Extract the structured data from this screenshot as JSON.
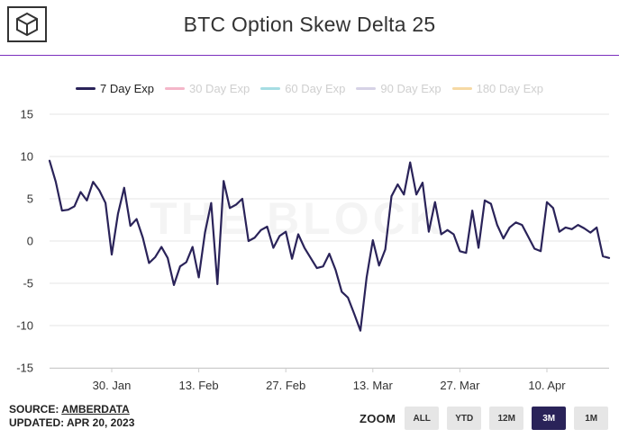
{
  "header": {
    "title": "BTC Option Skew Delta 25",
    "watermark": "THE BLOCK"
  },
  "colors": {
    "accent_rule": "#7b2fbe",
    "series_active": "#2a2359",
    "zoom_active_bg": "#2a2359"
  },
  "icons": {
    "logo": "the-block-cube-logo"
  },
  "footer": {
    "source_prefix": "SOURCE: ",
    "source_name": "AMBERDATA",
    "updated": "UPDATED: APR 20, 2023"
  },
  "zoom": {
    "label": "ZOOM",
    "buttons": [
      "ALL",
      "YTD",
      "12M",
      "3M",
      "1M"
    ],
    "active": "3M"
  },
  "chart_data": {
    "type": "line",
    "title": "BTC Option Skew Delta 25",
    "xlabel": "",
    "ylabel": "",
    "ylim": [
      -15,
      15
    ],
    "yticks": [
      "15",
      "10",
      "5",
      "0",
      "-5",
      "-10",
      "-15"
    ],
    "xticks": [
      "30. Jan",
      "13. Feb",
      "27. Feb",
      "13. Mar",
      "27. Mar",
      "10. Apr"
    ],
    "grid": "horizontal",
    "legend_position": "top",
    "x_range": [
      "2023-01-20",
      "2023-04-20"
    ],
    "series": [
      {
        "name": "7 Day Exp",
        "color": "#2a2359",
        "visible": true,
        "points": [
          [
            "2023-01-20",
            9.5
          ],
          [
            "2023-01-21",
            7.0
          ],
          [
            "2023-01-22",
            3.6
          ],
          [
            "2023-01-23",
            3.7
          ],
          [
            "2023-01-24",
            4.1
          ],
          [
            "2023-01-25",
            5.8
          ],
          [
            "2023-01-26",
            4.8
          ],
          [
            "2023-01-27",
            7.0
          ],
          [
            "2023-01-28",
            6.0
          ],
          [
            "2023-01-29",
            4.5
          ],
          [
            "2023-01-30",
            -1.6
          ],
          [
            "2023-01-31",
            3.2
          ],
          [
            "2023-02-01",
            6.3
          ],
          [
            "2023-02-02",
            1.8
          ],
          [
            "2023-02-03",
            2.6
          ],
          [
            "2023-02-04",
            0.4
          ],
          [
            "2023-02-05",
            -2.6
          ],
          [
            "2023-02-06",
            -1.9
          ],
          [
            "2023-02-07",
            -0.7
          ],
          [
            "2023-02-08",
            -2.0
          ],
          [
            "2023-02-09",
            -5.2
          ],
          [
            "2023-02-10",
            -3.0
          ],
          [
            "2023-02-11",
            -2.5
          ],
          [
            "2023-02-12",
            -0.7
          ],
          [
            "2023-02-13",
            -4.3
          ],
          [
            "2023-02-14",
            1.0
          ],
          [
            "2023-02-15",
            4.5
          ],
          [
            "2023-02-16",
            -5.1
          ],
          [
            "2023-02-17",
            7.1
          ],
          [
            "2023-02-18",
            3.9
          ],
          [
            "2023-02-19",
            4.3
          ],
          [
            "2023-02-20",
            5.0
          ],
          [
            "2023-02-21",
            0.0
          ],
          [
            "2023-02-22",
            0.4
          ],
          [
            "2023-02-23",
            1.3
          ],
          [
            "2023-02-24",
            1.7
          ],
          [
            "2023-02-25",
            -0.8
          ],
          [
            "2023-02-26",
            0.6
          ],
          [
            "2023-02-27",
            1.1
          ],
          [
            "2023-02-28",
            -2.1
          ],
          [
            "2023-03-01",
            0.8
          ],
          [
            "2023-03-02",
            -0.8
          ],
          [
            "2023-03-03",
            -2.0
          ],
          [
            "2023-03-04",
            -3.2
          ],
          [
            "2023-03-05",
            -3.0
          ],
          [
            "2023-03-06",
            -1.5
          ],
          [
            "2023-03-07",
            -3.4
          ],
          [
            "2023-03-08",
            -6.0
          ],
          [
            "2023-03-09",
            -6.7
          ],
          [
            "2023-03-10",
            -8.6
          ],
          [
            "2023-03-11",
            -10.6
          ],
          [
            "2023-03-12",
            -4.3
          ],
          [
            "2023-03-13",
            0.1
          ],
          [
            "2023-03-14",
            -2.9
          ],
          [
            "2023-03-15",
            -1.0
          ],
          [
            "2023-03-16",
            5.3
          ],
          [
            "2023-03-17",
            6.7
          ],
          [
            "2023-03-18",
            5.5
          ],
          [
            "2023-03-19",
            9.3
          ],
          [
            "2023-03-20",
            5.5
          ],
          [
            "2023-03-21",
            6.9
          ],
          [
            "2023-03-22",
            1.1
          ],
          [
            "2023-03-23",
            4.6
          ],
          [
            "2023-03-24",
            0.8
          ],
          [
            "2023-03-25",
            1.3
          ],
          [
            "2023-03-26",
            0.8
          ],
          [
            "2023-03-27",
            -1.2
          ],
          [
            "2023-03-28",
            -1.4
          ],
          [
            "2023-03-29",
            3.6
          ],
          [
            "2023-03-30",
            -0.8
          ],
          [
            "2023-03-31",
            4.8
          ],
          [
            "2023-04-01",
            4.4
          ],
          [
            "2023-04-02",
            1.9
          ],
          [
            "2023-04-03",
            0.3
          ],
          [
            "2023-04-04",
            1.6
          ],
          [
            "2023-04-05",
            2.2
          ],
          [
            "2023-04-06",
            1.9
          ],
          [
            "2023-04-07",
            0.5
          ],
          [
            "2023-04-08",
            -0.9
          ],
          [
            "2023-04-09",
            -1.2
          ],
          [
            "2023-04-10",
            4.6
          ],
          [
            "2023-04-11",
            3.9
          ],
          [
            "2023-04-12",
            1.1
          ],
          [
            "2023-04-13",
            1.6
          ],
          [
            "2023-04-14",
            1.4
          ],
          [
            "2023-04-15",
            1.9
          ],
          [
            "2023-04-16",
            1.5
          ],
          [
            "2023-04-17",
            1.0
          ],
          [
            "2023-04-18",
            1.6
          ],
          [
            "2023-04-19",
            -1.8
          ],
          [
            "2023-04-20",
            -2.0
          ]
        ]
      },
      {
        "name": "30 Day Exp",
        "color": "#f4b6c9",
        "visible": false,
        "points": []
      },
      {
        "name": "60 Day Exp",
        "color": "#a6dde3",
        "visible": false,
        "points": []
      },
      {
        "name": "90 Day Exp",
        "color": "#d6d2e6",
        "visible": false,
        "points": []
      },
      {
        "name": "180 Day Exp",
        "color": "#f6d9a4",
        "visible": false,
        "points": []
      }
    ]
  }
}
